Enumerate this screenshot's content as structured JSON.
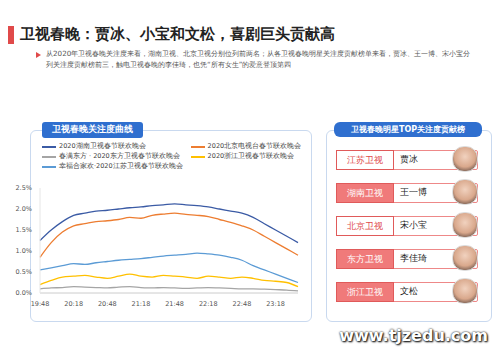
{
  "title": "卫视春晚：贾冰、小宝和文松，喜剧巨头贡献高",
  "subtitle": "从2020年卫视春晚关注度来看，湖南卫视、北京卫视分别位列前两名；从各卫视春晚明星关注度贡献榜单来看，贾冰、王一博、宋小宝分列关注度贡献榜前三，触电卫视春晚的李佳琦，也凭“所有女生”的爱意登顶第四",
  "chart_data": {
    "type": "line",
    "title": "卫视春晚关注度曲线",
    "categories": [
      "19:48",
      null,
      null,
      "20:18",
      null,
      null,
      "20:48",
      null,
      null,
      "21:18",
      null,
      null,
      "21:48",
      null,
      null,
      "22:18",
      null,
      null,
      "22:48",
      null,
      null,
      "23:18",
      null,
      null
    ],
    "series": [
      {
        "name": "2020湖南卫视春节联欢晚会",
        "color": "#3b5ba5",
        "values": [
          1.25,
          1.5,
          1.7,
          1.85,
          1.9,
          1.95,
          1.97,
          2.0,
          2.03,
          2.05,
          2.08,
          2.1,
          2.12,
          2.1,
          2.08,
          2.05,
          2.0,
          1.95,
          1.9,
          1.8,
          1.65,
          1.5,
          1.35,
          1.2
        ]
      },
      {
        "name": "2020北京电视台春节联欢晚会",
        "color": "#ed7d31",
        "values": [
          0.85,
          1.2,
          1.45,
          1.6,
          1.65,
          1.7,
          1.72,
          1.75,
          1.8,
          1.78,
          1.85,
          1.88,
          1.9,
          1.87,
          1.85,
          1.82,
          1.75,
          1.68,
          1.6,
          1.5,
          1.35,
          1.2,
          1.05,
          0.9
        ]
      },
      {
        "name": "春满东方 · 2020东方卫视春节联欢晚会",
        "color": "#a5a5a5",
        "values": [
          0.1,
          0.12,
          0.13,
          0.15,
          0.14,
          0.13,
          0.12,
          0.14,
          0.15,
          0.13,
          0.12,
          0.13,
          0.12,
          0.11,
          0.12,
          0.13,
          0.12,
          0.11,
          0.1,
          0.1,
          0.09,
          0.08,
          0.07,
          0.05
        ]
      },
      {
        "name": "2020浙江卫视春节联欢晚会",
        "color": "#ffc000",
        "values": [
          0.2,
          0.3,
          0.38,
          0.4,
          0.42,
          0.38,
          0.35,
          0.4,
          0.45,
          0.4,
          0.38,
          0.42,
          0.4,
          0.38,
          0.35,
          0.4,
          0.38,
          0.35,
          0.38,
          0.35,
          0.3,
          0.28,
          0.25,
          0.15
        ]
      },
      {
        "name": "幸福合家欢·2020江苏卫视春节联欢晚会",
        "color": "#5b9bd5",
        "values": [
          0.55,
          0.6,
          0.65,
          0.7,
          0.68,
          0.72,
          0.75,
          0.78,
          0.8,
          0.82,
          0.85,
          0.88,
          0.9,
          0.92,
          0.95,
          0.93,
          0.9,
          0.85,
          0.78,
          0.65,
          0.55,
          0.45,
          0.35,
          0.25
        ]
      }
    ],
    "ylim": [
      0,
      2.5
    ],
    "yticks": [
      {
        "value": 0,
        "label": "0.0%"
      },
      {
        "value": 0.5,
        "label": "0.5%"
      },
      {
        "value": 1,
        "label": "1.0%"
      },
      {
        "value": 1.5,
        "label": "1.5%"
      },
      {
        "value": 2,
        "label": "2.0%"
      },
      {
        "value": 2.5,
        "label": "2.5%"
      }
    ],
    "grid": false,
    "legend": "top",
    "marker": "none"
  },
  "ranking": {
    "title": "卫视春晚明星TOP关注度贡献榜",
    "rows": [
      {
        "channel": "江苏卫视",
        "name": "贾冰"
      },
      {
        "channel": "湖南卫视",
        "name": "王一博"
      },
      {
        "channel": "北京卫视",
        "name": "宋小宝"
      },
      {
        "channel": "东方卫视",
        "name": "李佳琦"
      },
      {
        "channel": "浙江卫视",
        "name": "文松"
      }
    ]
  },
  "watermark": "www.tjzedu.com"
}
